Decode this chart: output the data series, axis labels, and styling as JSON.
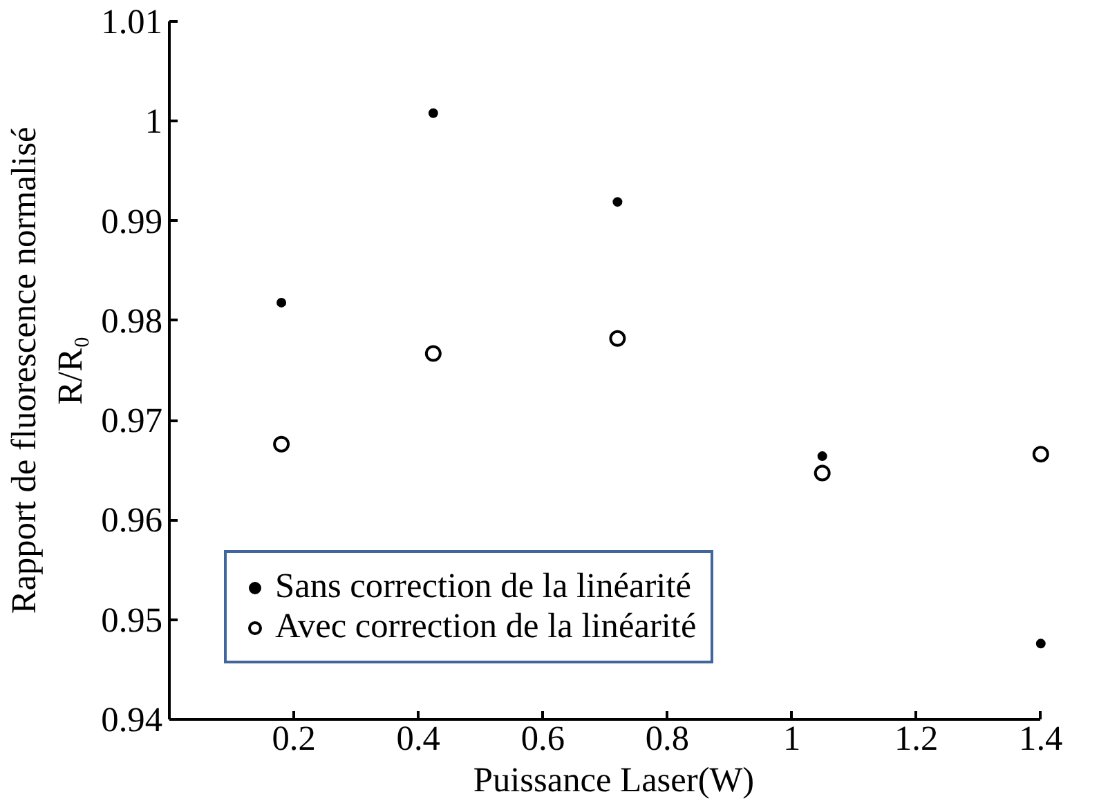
{
  "chart_data": {
    "type": "scatter",
    "xlabel": "Puissance Laser(W)",
    "ylabel": "Rapport de fluorescence normalisé\nR/R₀",
    "x": [
      0.18,
      0.424,
      0.72,
      1.049,
      1.4
    ],
    "series": [
      {
        "name": "Sans correction de la linéarité",
        "color": "#000000",
        "values": [
          0.9818,
          1.0008,
          0.9919,
          0.9664,
          0.9476
        ]
      },
      {
        "name": "Avec correction de la linéarité",
        "color": "#000000",
        "values": [
          0.9676,
          0.9767,
          0.9782,
          0.9647,
          0.9666
        ]
      }
    ],
    "xlim": [
      0,
      1.4
    ],
    "xticks": [
      0.2,
      0.4,
      0.6,
      0.8,
      1,
      1.2,
      1.4
    ],
    "ylim": [
      0.94,
      1.01
    ],
    "yticks": [
      0.94,
      0.95,
      0.96,
      0.97,
      0.98,
      0.99,
      1,
      1.01
    ],
    "grid": false,
    "legend": "bottom left",
    "marker": "circle"
  }
}
